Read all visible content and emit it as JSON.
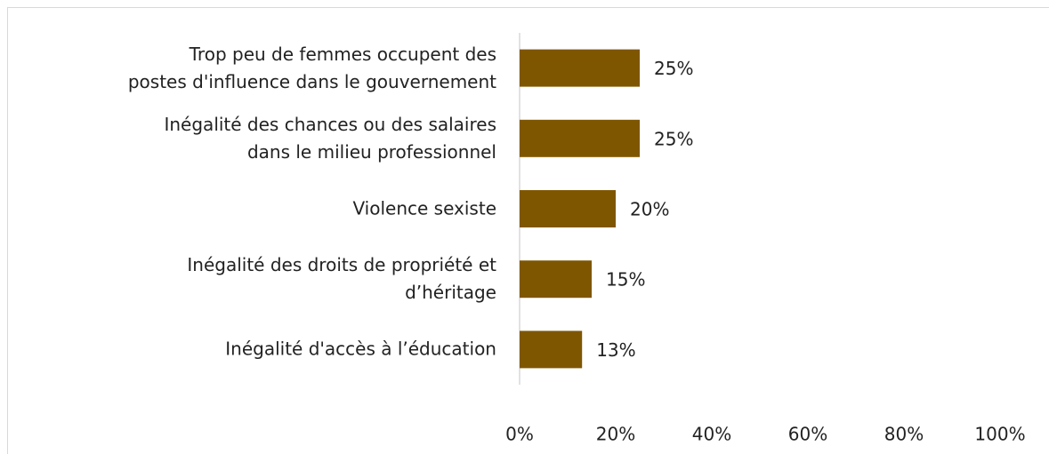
{
  "chart_data": {
    "type": "bar",
    "orientation": "horizontal",
    "categories": [
      "Trop peu de femmes occupent des\npostes d'influence dans le gouvernement",
      "Inégalité des chances ou des salaires\ndans le milieu professionnel",
      "Violence sexiste",
      "Inégalité des droits de propriété et\nd’héritage",
      "Inégalité d'accès à l’éducation"
    ],
    "values": [
      25,
      25,
      20,
      15,
      13
    ],
    "value_labels": [
      "25%",
      "25%",
      "20%",
      "15%",
      "13%"
    ],
    "color": "#7f5600",
    "xlim": [
      0,
      100
    ],
    "xticks": [
      {
        "value": 0,
        "label": "0%"
      },
      {
        "value": 20,
        "label": "20%"
      },
      {
        "value": 40,
        "label": "40%"
      },
      {
        "value": 60,
        "label": "60%"
      },
      {
        "value": 80,
        "label": "80%"
      },
      {
        "value": 100,
        "label": "100%"
      }
    ],
    "grid": false
  }
}
